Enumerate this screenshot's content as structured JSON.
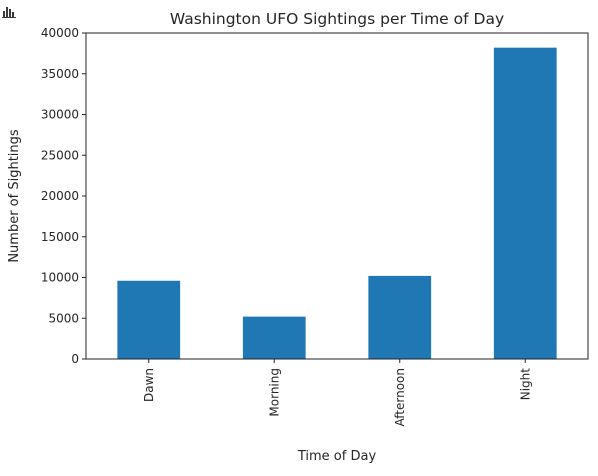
{
  "icon": "bar-chart-icon",
  "colors": {
    "bar": "#1f77b4",
    "axis": "#262626",
    "icon": "#3a3a3a"
  },
  "chart_data": {
    "type": "bar",
    "title": "Washington UFO Sightings per Time of Day",
    "xlabel": "Time of Day",
    "ylabel": "Number of Sightings",
    "categories": [
      "Dawn",
      "Morning",
      "Afternoon",
      "Night"
    ],
    "values": [
      9600,
      5200,
      10200,
      38200
    ],
    "ylim": [
      0,
      40000
    ],
    "yticks": [
      0,
      5000,
      10000,
      15000,
      20000,
      25000,
      30000,
      35000,
      40000
    ],
    "grid": false,
    "legend": "none"
  }
}
